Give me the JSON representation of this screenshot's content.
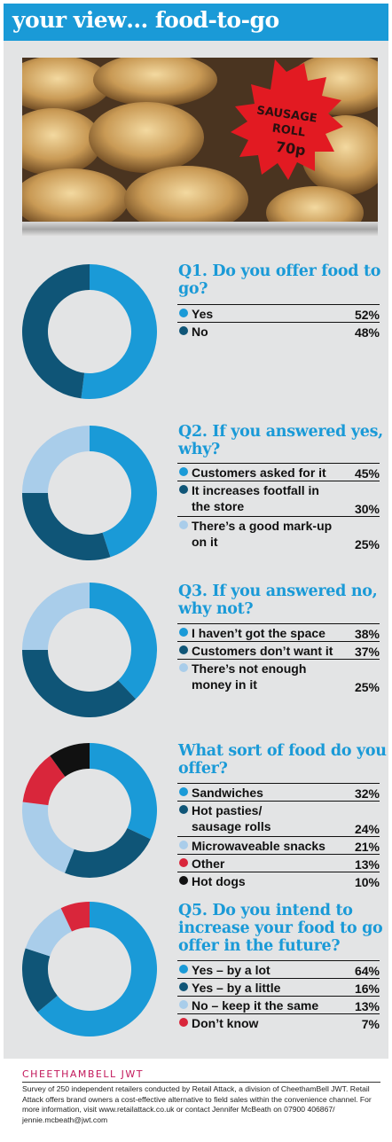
{
  "header": {
    "title": "your view… food-to-go"
  },
  "photo": {
    "sign_line1": "SAUSAGE",
    "sign_line2": "ROLL",
    "sign_line3": "70p"
  },
  "colors": {
    "blue": "#1a9ad7",
    "navy": "#0f5577",
    "light_blue": "#a9cdea",
    "red": "#d9263b",
    "black": "#111111"
  },
  "chart_data": [
    {
      "type": "pie",
      "title": "Q1. Do you offer food to go?",
      "categories": [
        "Yes",
        "No"
      ],
      "values": [
        52,
        48
      ],
      "labels": [
        "52%",
        "48%"
      ],
      "colors": [
        "#1a9ad7",
        "#0f5577"
      ]
    },
    {
      "type": "pie",
      "title": "Q2. If you answered yes, why?",
      "categories": [
        "Customers asked for it",
        "It increases footfall in the store",
        "There’s a good mark-up on it"
      ],
      "values": [
        45,
        30,
        25
      ],
      "labels": [
        "45%",
        "30%",
        "25%"
      ],
      "colors": [
        "#1a9ad7",
        "#0f5577",
        "#a9cdea"
      ]
    },
    {
      "type": "pie",
      "title": "Q3. If you answered no, why not?",
      "categories": [
        "I haven’t got the space",
        "Customers don’t want it",
        "There’s not enough money in it"
      ],
      "values": [
        38,
        37,
        25
      ],
      "labels": [
        "38%",
        "37%",
        "25%"
      ],
      "colors": [
        "#1a9ad7",
        "#0f5577",
        "#a9cdea"
      ]
    },
    {
      "type": "pie",
      "title": "What sort of food do you offer?",
      "categories": [
        "Sandwiches",
        "Hot pasties/ sausage rolls",
        "Microwaveable snacks",
        "Other",
        "Hot dogs"
      ],
      "values": [
        32,
        24,
        21,
        13,
        10
      ],
      "labels": [
        "32%",
        "24%",
        "21%",
        "13%",
        "10%"
      ],
      "colors": [
        "#1a9ad7",
        "#0f5577",
        "#a9cdea",
        "#d9263b",
        "#111111"
      ]
    },
    {
      "type": "pie",
      "title": "Q5. Do you intend to increase your food to go offer in the future?",
      "categories": [
        "Yes – by a lot",
        "Yes – by a little",
        "No – keep it the same",
        "Don’t know"
      ],
      "values": [
        64,
        16,
        13,
        7
      ],
      "labels": [
        "64%",
        "16%",
        "13%",
        "7%"
      ],
      "colors": [
        "#1a9ad7",
        "#0f5577",
        "#a9cdea",
        "#d9263b"
      ]
    }
  ],
  "footer": {
    "logo": "CHEETHAMBELL JWT",
    "text": "Survey of 250 independent retailers conducted by Retail Attack, a division of CheethamBell JWT. Retail Attack offers brand owners a cost-effective alternative to field sales within the convenience channel. For more information, visit www.retailattack.co.uk or contact Jennifer McBeath on 07900 406867/ jennie.mcbeath@jwt.com"
  }
}
